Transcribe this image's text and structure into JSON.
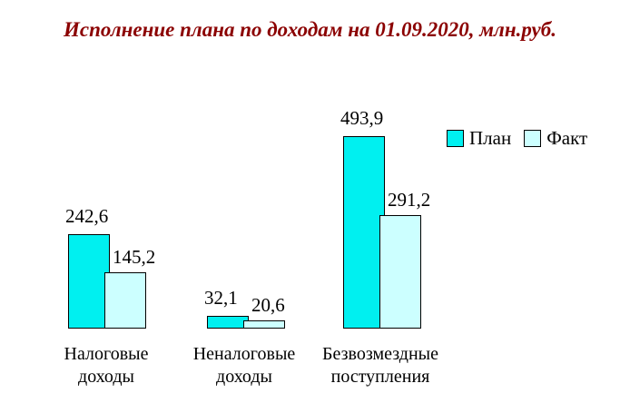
{
  "title": "Исполнение плана по доходам на 01.09.2020, млн.руб.",
  "title_color": "#8B0000",
  "colors": {
    "plan_fill": "#00F0F0",
    "fakt_fill": "#CCFFFF",
    "bar_border": "#000000",
    "label_text": "#000000",
    "background": "#FFFFFF"
  },
  "chart_data": {
    "type": "bar",
    "title": "Исполнение плана по доходам на 01.09.2020, млн.руб.",
    "categories": [
      "Налоговые\nдоходы",
      "Неналоговые\nдоходы",
      "Безвозмездные\nпоступления"
    ],
    "series": [
      {
        "name": "План",
        "color": "#00F0F0",
        "values": [
          242.6,
          32.1,
          493.9
        ],
        "labels": [
          "242,6",
          "32,1",
          "493,9"
        ]
      },
      {
        "name": "Факт",
        "color": "#CCFFFF",
        "values": [
          145.2,
          20.6,
          291.2
        ],
        "labels": [
          "145,2",
          "20,6",
          "291,2"
        ]
      }
    ],
    "xlabel": "",
    "ylabel": "",
    "ylim": [
      0,
      520
    ],
    "grid": false,
    "axes_visible": false,
    "legend_position": "top-right",
    "value_labels_shown": true,
    "decimal_separator": ","
  }
}
